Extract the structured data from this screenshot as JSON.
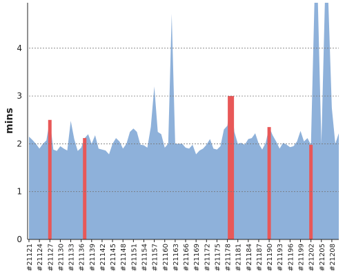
{
  "chart_data": {
    "type": "area",
    "title": "",
    "xlabel": "",
    "ylabel": "mins",
    "ylim": [
      0,
      4.95
    ],
    "yticks": [
      0,
      1,
      2,
      3,
      4
    ],
    "grid": "horizontal dotted",
    "legend": "none",
    "colors": {
      "area": "#8eb1da",
      "highlight": "#e85858",
      "grid": "#777777",
      "axis": "#222222"
    },
    "x_start_build": 21121,
    "x_label_step": 3,
    "x_label_prefix": "#",
    "x_tick_labels": [
      "#21121",
      "#21124",
      "#21127",
      "#21130",
      "#21133",
      "#21136",
      "#21139",
      "#21142",
      "#21145",
      "#21148",
      "#21151",
      "#21154",
      "#21157",
      "#21160",
      "#21163",
      "#21166",
      "#21169",
      "#21172",
      "#21175",
      "#21178",
      "#21181",
      "#21184",
      "#21187",
      "#21190",
      "#21193",
      "#21196",
      "#21199",
      "#21202",
      "#21205",
      "#21208"
    ],
    "values": [
      2.15,
      2.08,
      2.0,
      1.9,
      2.0,
      2.07,
      2.5,
      1.88,
      1.85,
      1.95,
      1.9,
      1.86,
      2.48,
      2.1,
      1.85,
      1.92,
      2.12,
      2.2,
      2.0,
      2.18,
      1.9,
      1.88,
      1.86,
      1.78,
      2.0,
      2.12,
      2.05,
      1.9,
      2.0,
      2.25,
      2.32,
      2.25,
      1.98,
      1.97,
      1.92,
      2.35,
      3.2,
      2.25,
      2.2,
      1.92,
      2.0,
      4.72,
      2.0,
      2.0,
      2.0,
      1.92,
      1.9,
      1.98,
      1.78,
      1.86,
      1.9,
      1.98,
      2.1,
      1.9,
      1.88,
      1.95,
      2.3,
      2.38,
      3.0,
      2.25,
      2.0,
      2.02,
      1.98,
      2.1,
      2.12,
      2.22,
      2.0,
      1.88,
      2.02,
      2.35,
      2.18,
      2.05,
      1.9,
      2.02,
      1.98,
      1.93,
      1.95,
      2.05,
      2.27,
      2.05,
      2.12,
      1.98,
      5.5,
      5.5,
      2.0,
      5.5,
      5.5,
      2.75,
      2.0,
      2.22
    ],
    "highlight_builds": [
      "#21127",
      "#21137",
      "#21179",
      "#21190",
      "#21202"
    ]
  }
}
